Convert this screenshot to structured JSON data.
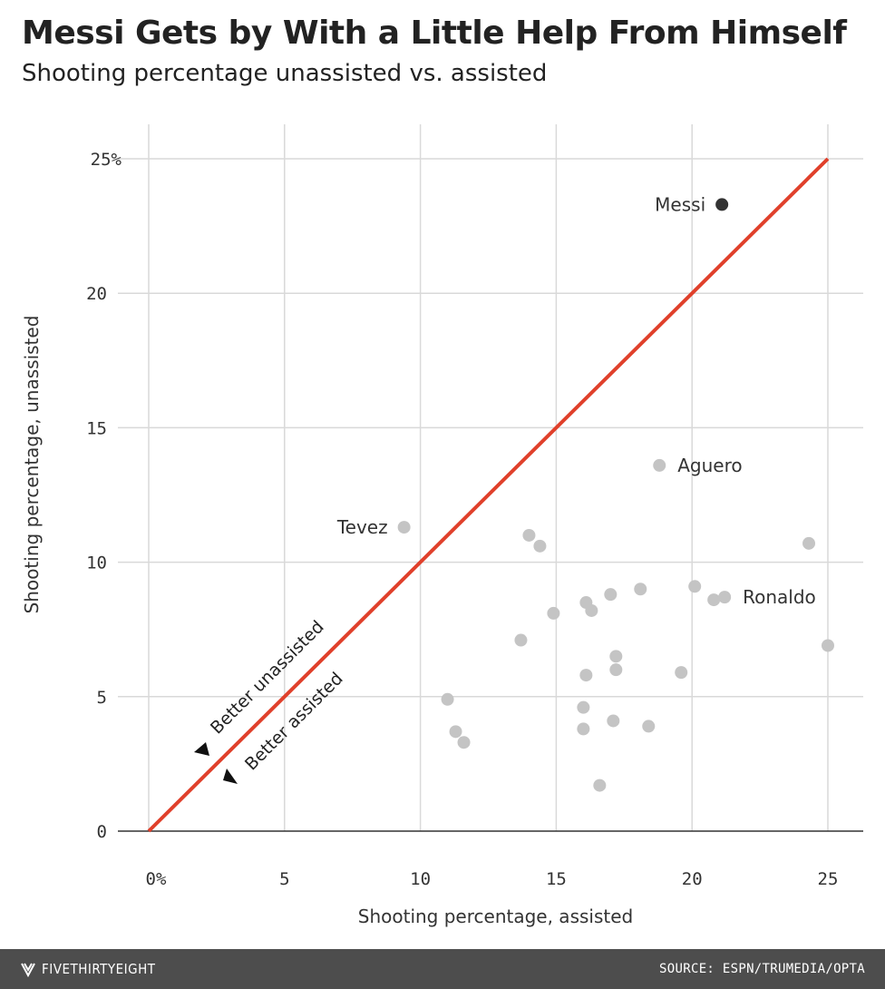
{
  "chart_data": {
    "type": "scatter",
    "title": "Messi Gets by With a Little Help From Himself",
    "subtitle": "Shooting percentage unassisted vs. assisted",
    "xlabel": "Shooting percentage, assisted",
    "ylabel": "Shooting percentage, unassisted",
    "xlim": [
      0,
      25
    ],
    "ylim": [
      0,
      25
    ],
    "x_ticks": [
      "0%",
      "5",
      "10",
      "15",
      "20",
      "25"
    ],
    "y_ticks": [
      "0",
      "5",
      "10",
      "15",
      "20",
      "25%"
    ],
    "grid": true,
    "reference_line": {
      "from": [
        0,
        0
      ],
      "to": [
        25,
        25
      ],
      "color": "#e0402b"
    },
    "annotations": [
      "Better unassisted",
      "Better assisted"
    ],
    "colors": {
      "highlight": "#333333",
      "point": "#c4c4c4",
      "line": "#e0402b"
    },
    "points": [
      {
        "x": 21.1,
        "y": 23.3,
        "label": "Messi",
        "highlight": true
      },
      {
        "x": 18.8,
        "y": 13.6,
        "label": "Aguero"
      },
      {
        "x": 9.4,
        "y": 11.3,
        "label": "Tevez"
      },
      {
        "x": 21.2,
        "y": 8.7,
        "label": "Ronaldo"
      },
      {
        "x": 20.8,
        "y": 8.6
      },
      {
        "x": 14.0,
        "y": 11.0
      },
      {
        "x": 14.4,
        "y": 10.6
      },
      {
        "x": 24.3,
        "y": 10.7
      },
      {
        "x": 20.1,
        "y": 9.1
      },
      {
        "x": 18.1,
        "y": 9.0
      },
      {
        "x": 17.0,
        "y": 8.8
      },
      {
        "x": 16.1,
        "y": 8.5
      },
      {
        "x": 16.3,
        "y": 8.2
      },
      {
        "x": 14.9,
        "y": 8.1
      },
      {
        "x": 13.7,
        "y": 7.1
      },
      {
        "x": 25.0,
        "y": 6.9
      },
      {
        "x": 17.2,
        "y": 6.5
      },
      {
        "x": 17.2,
        "y": 6.0
      },
      {
        "x": 19.6,
        "y": 5.9
      },
      {
        "x": 16.1,
        "y": 5.8
      },
      {
        "x": 11.0,
        "y": 4.9
      },
      {
        "x": 16.0,
        "y": 4.6
      },
      {
        "x": 17.1,
        "y": 4.1
      },
      {
        "x": 18.4,
        "y": 3.9
      },
      {
        "x": 16.0,
        "y": 3.8
      },
      {
        "x": 11.3,
        "y": 3.7
      },
      {
        "x": 11.6,
        "y": 3.3
      },
      {
        "x": 16.6,
        "y": 1.7
      }
    ]
  },
  "footer": {
    "brand": "FIVETHIRTYEIGHT",
    "source": "SOURCE: ESPN/TRUMEDIA/OPTA"
  }
}
